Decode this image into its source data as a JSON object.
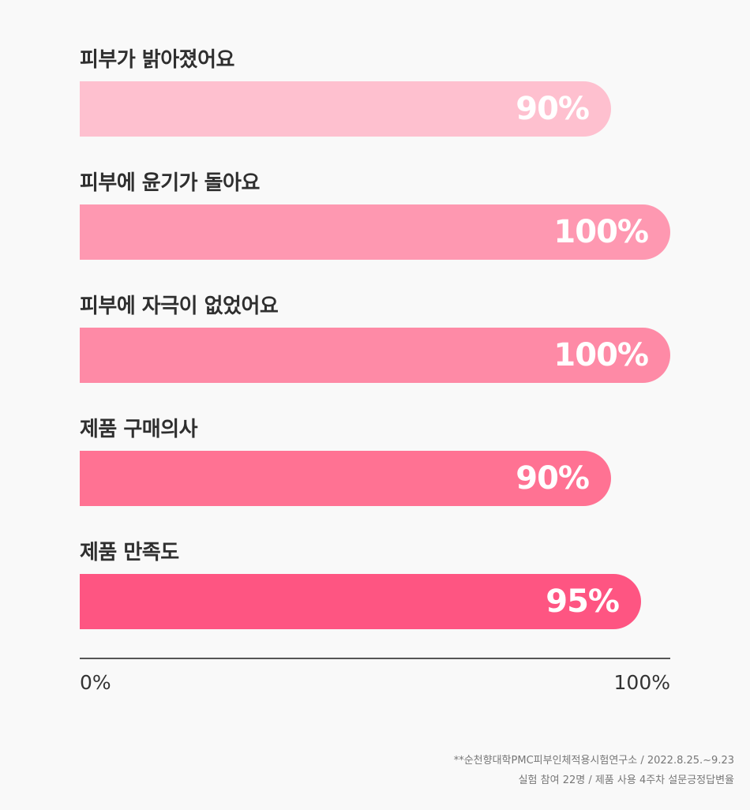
{
  "chart_data": {
    "type": "bar",
    "orientation": "horizontal",
    "categories": [
      "피부가 밝아졌어요",
      "피부에 윤기가 돌아요",
      "피부에 자극이 없었어요",
      "제품 구매의사",
      "제품 만족도"
    ],
    "values": [
      90,
      100,
      100,
      90,
      95
    ],
    "value_labels": [
      "90%",
      "100%",
      "100%",
      "90%",
      "95%"
    ],
    "xlim": [
      0,
      100
    ],
    "x_tick_labels": [
      "0%",
      "100%"
    ],
    "bar_colors": [
      "#fec0cf",
      "#fe98b1",
      "#fe8aa6",
      "#ff7293",
      "#fe5582"
    ],
    "grid": false,
    "legend": "none"
  },
  "footnotes": [
    "**순천향대학PMC피부인체적용시험연구소 / 2022.8.25.~9.23",
    "실험 참여 22명 / 제품 사용 4주차 설문긍정답변율"
  ]
}
